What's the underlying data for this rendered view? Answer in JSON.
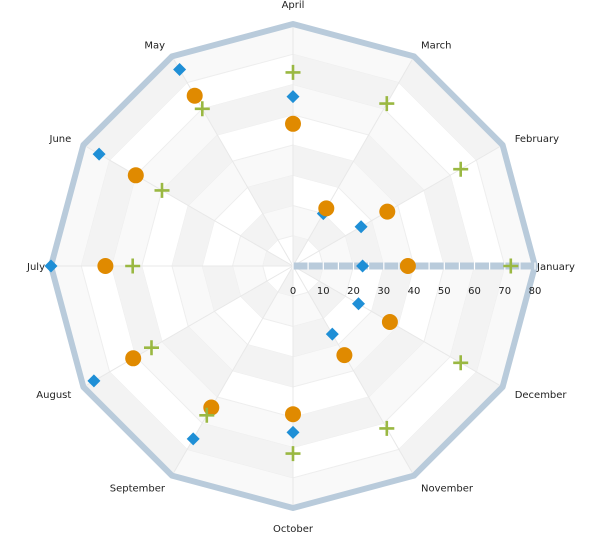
{
  "chart_data": {
    "type": "radar-scatter",
    "angular_categories": [
      "January",
      "February",
      "March",
      "April",
      "May",
      "June",
      "July",
      "August",
      "September",
      "October",
      "November",
      "December"
    ],
    "radial_ticks": [
      "0",
      "10",
      "20",
      "30",
      "40",
      "50",
      "60",
      "70",
      "80"
    ],
    "radial_range": [
      0,
      80
    ],
    "series": [
      {
        "marker": "diamond",
        "color": "#1f8fd6",
        "values": [
          23,
          26,
          20,
          56,
          75,
          74,
          80,
          76,
          66,
          55,
          26,
          25
        ]
      },
      {
        "marker": "circle",
        "color": "#e08a00",
        "values": [
          38,
          36,
          22,
          47,
          65,
          60,
          62,
          61,
          54,
          49,
          34,
          37
        ]
      },
      {
        "marker": "plus",
        "color": "#9ab842",
        "values": [
          72,
          64,
          62,
          64,
          60,
          50,
          53,
          54,
          57,
          62,
          62,
          64
        ]
      }
    ],
    "outer_border_color": "#b9cbdb",
    "axis_color": "#b9cbdb"
  }
}
